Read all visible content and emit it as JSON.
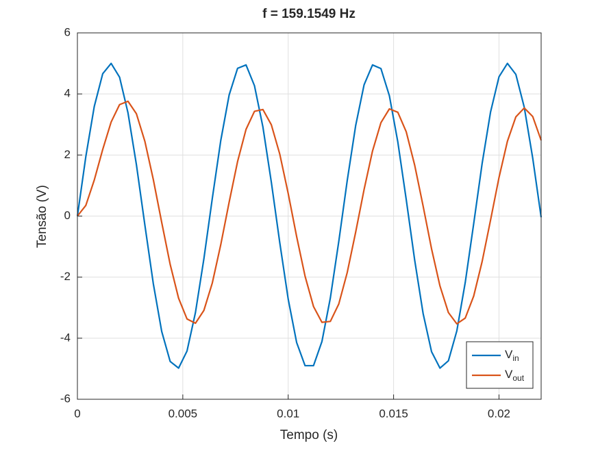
{
  "chart_data": {
    "type": "line",
    "title": "f = 159.1549 Hz",
    "x_label": "Tempo (s)",
    "y_label": "Tensão (V)",
    "x": [
      0,
      0.0004,
      0.0008,
      0.0012,
      0.0016,
      0.002,
      0.0024,
      0.0028,
      0.0032,
      0.0036,
      0.004,
      0.0044,
      0.0048,
      0.0052,
      0.0056,
      0.006,
      0.0064,
      0.0068,
      0.0072,
      0.0076,
      0.008,
      0.0084,
      0.0088,
      0.0092,
      0.0096,
      0.01,
      0.0104,
      0.0108,
      0.0112,
      0.0116,
      0.012,
      0.0124,
      0.0128,
      0.0132,
      0.0136,
      0.014,
      0.0144,
      0.0148,
      0.0152,
      0.0156,
      0.016,
      0.0164,
      0.0168,
      0.0172,
      0.0176,
      0.018,
      0.0184,
      0.0188,
      0.0192,
      0.0196,
      0.02,
      0.0204,
      0.0208,
      0.0212,
      0.0216,
      0.022
    ],
    "series": [
      {
        "name": "Vin",
        "color": "#0072bd",
        "values": [
          0,
          1.95,
          3.59,
          4.66,
          5.0,
          4.55,
          3.38,
          1.68,
          -0.29,
          -2.21,
          -3.78,
          -4.76,
          -4.98,
          -4.42,
          -3.16,
          -1.4,
          0.58,
          2.47,
          3.97,
          4.84,
          4.95,
          4.27,
          2.92,
          1.11,
          -0.87,
          -2.72,
          -4.14,
          -4.9,
          -4.9,
          -4.11,
          -2.68,
          -0.83,
          1.16,
          2.96,
          4.3,
          4.95,
          4.83,
          3.94,
          2.43,
          0.54,
          -1.44,
          -3.19,
          -4.44,
          -4.98,
          -4.74,
          -3.76,
          -2.17,
          -0.25,
          1.72,
          3.41,
          4.56,
          5.0,
          4.64,
          3.56,
          1.9,
          -0.04
        ]
      },
      {
        "name": "Vout",
        "color": "#d95319",
        "values": [
          0,
          0.35,
          1.18,
          2.18,
          3.08,
          3.65,
          3.76,
          3.35,
          2.45,
          1.2,
          -0.21,
          -1.58,
          -2.69,
          -3.37,
          -3.51,
          -3.09,
          -2.19,
          -0.94,
          0.46,
          1.79,
          2.84,
          3.43,
          3.49,
          2.99,
          2.03,
          0.74,
          -0.67,
          -1.97,
          -2.96,
          -3.48,
          -3.45,
          -2.88,
          -1.85,
          -0.53,
          0.87,
          2.13,
          3.06,
          3.51,
          3.4,
          2.76,
          1.67,
          0.33,
          -1.07,
          -2.29,
          -3.16,
          -3.53,
          -3.34,
          -2.62,
          -1.49,
          -0.13,
          1.26,
          2.45,
          3.25,
          3.54,
          3.26,
          2.48
        ]
      }
    ],
    "xlim": [
      0,
      0.022
    ],
    "xticks": [
      0,
      0.005,
      0.01,
      0.015,
      0.02
    ],
    "ylim": [
      -6,
      6
    ],
    "yticks": [
      -6,
      -4,
      -2,
      0,
      2,
      4,
      6
    ],
    "grid": true,
    "legend": "southeast"
  }
}
